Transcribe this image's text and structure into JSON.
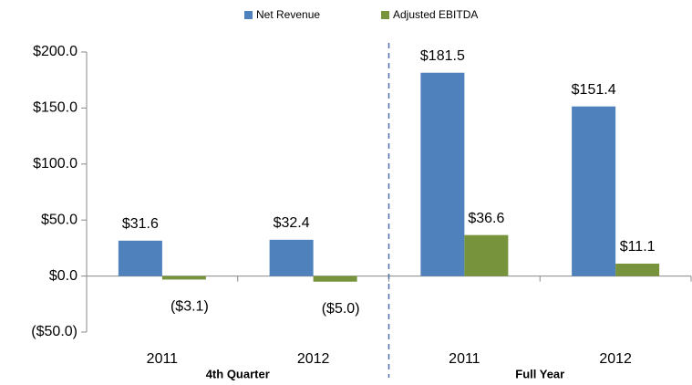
{
  "chart_data": {
    "type": "bar",
    "categories": [
      "2011",
      "2012",
      "2011",
      "2012"
    ],
    "groups": [
      {
        "label": "4th Quarter",
        "span": [
          0,
          1
        ]
      },
      {
        "label": "Full Year",
        "span": [
          2,
          3
        ]
      }
    ],
    "series": [
      {
        "name": "Net Revenue",
        "color": "#4f81bd",
        "values": [
          31.6,
          32.4,
          181.5,
          151.4
        ],
        "value_labels": [
          "$31.6",
          "$32.4",
          "$181.5",
          "$151.4"
        ]
      },
      {
        "name": "Adjusted EBITDA",
        "color": "#77933c",
        "values": [
          -3.1,
          -5.0,
          36.6,
          11.1
        ],
        "value_labels": [
          "($3.1)",
          "($5.0)",
          "$36.6",
          "$11.1"
        ]
      }
    ],
    "ylim": [
      -50,
      200
    ],
    "yticks": [
      {
        "value": -50,
        "label": "($50.0)"
      },
      {
        "value": 0,
        "label": "$0.0"
      },
      {
        "value": 50,
        "label": "$50.0"
      },
      {
        "value": 100,
        "label": "$100.0"
      },
      {
        "value": 150,
        "label": "$150.0"
      },
      {
        "value": 200,
        "label": "$200.0"
      }
    ],
    "legend": "top"
  }
}
